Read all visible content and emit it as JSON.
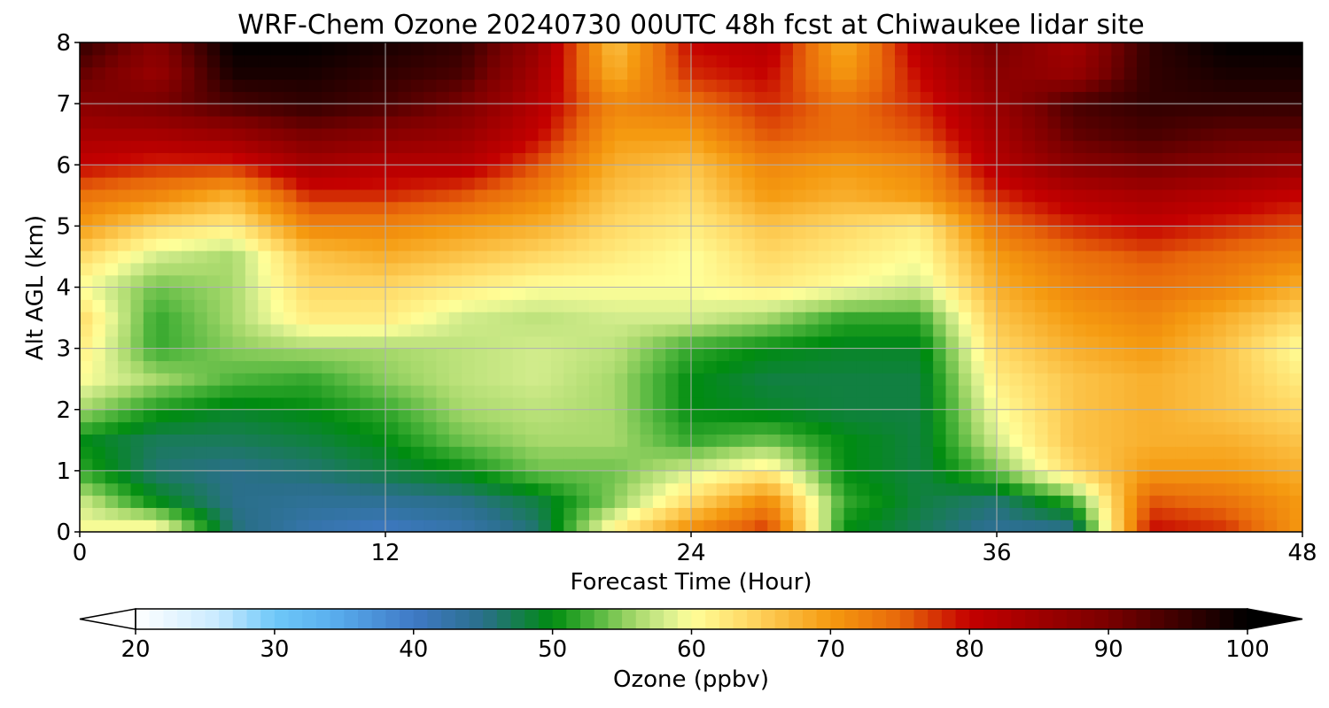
{
  "chart_data": {
    "type": "heatmap",
    "title": "WRF-Chem Ozone  20240730 00UTC 48h fcst at Chiwaukee lidar site",
    "xlabel": "Forecast Time (Hour)",
    "ylabel": "Alt AGL (km)",
    "xlim": [
      0,
      48
    ],
    "ylim": [
      0,
      8
    ],
    "xticks": [
      0,
      12,
      24,
      36,
      48
    ],
    "yticks": [
      0,
      1,
      2,
      3,
      4,
      5,
      6,
      7,
      8
    ],
    "grid": true,
    "x": [
      0,
      3,
      6,
      9,
      12,
      15,
      18,
      21,
      24,
      27,
      30,
      33,
      36,
      39,
      42,
      45,
      48
    ],
    "y": [
      0,
      0.5,
      1,
      1.5,
      2,
      2.5,
      3,
      3.5,
      4,
      4.5,
      5,
      5.5,
      6,
      6.5,
      7,
      7.5,
      8
    ],
    "z": [
      [
        60,
        62,
        46,
        42,
        40,
        42,
        46,
        62,
        72,
        78,
        50,
        47,
        44,
        44,
        80,
        78,
        70
      ],
      [
        58,
        50,
        45,
        44,
        44,
        45,
        48,
        55,
        64,
        72,
        52,
        48,
        46,
        52,
        76,
        74,
        70
      ],
      [
        52,
        46,
        45,
        46,
        48,
        50,
        54,
        54,
        58,
        62,
        50,
        48,
        54,
        64,
        70,
        70,
        68
      ],
      [
        50,
        47,
        47,
        48,
        50,
        54,
        56,
        56,
        52,
        54,
        50,
        48,
        58,
        66,
        68,
        68,
        66
      ],
      [
        56,
        51,
        49,
        50,
        52,
        56,
        57,
        56,
        50,
        49,
        48,
        48,
        60,
        66,
        68,
        66,
        64
      ],
      [
        60,
        56,
        53,
        52,
        55,
        57,
        58,
        56,
        50,
        48,
        48,
        48,
        62,
        66,
        68,
        66,
        62
      ],
      [
        62,
        52,
        55,
        56,
        56,
        57,
        58,
        57,
        52,
        50,
        49,
        49,
        64,
        68,
        70,
        66,
        60
      ],
      [
        64,
        52,
        56,
        62,
        62,
        58,
        57,
        58,
        58,
        56,
        52,
        52,
        66,
        70,
        72,
        68,
        64
      ],
      [
        60,
        54,
        56,
        64,
        64,
        62,
        60,
        60,
        60,
        62,
        60,
        58,
        68,
        72,
        74,
        72,
        68
      ],
      [
        64,
        58,
        56,
        66,
        68,
        66,
        64,
        62,
        60,
        64,
        62,
        60,
        70,
        74,
        76,
        74,
        72
      ],
      [
        70,
        64,
        62,
        72,
        72,
        70,
        68,
        64,
        62,
        66,
        64,
        62,
        74,
        78,
        80,
        78,
        76
      ],
      [
        74,
        72,
        68,
        78,
        78,
        76,
        72,
        66,
        64,
        70,
        68,
        70,
        78,
        82,
        84,
        82,
        80
      ],
      [
        80,
        78,
        78,
        84,
        82,
        82,
        76,
        68,
        66,
        72,
        70,
        72,
        82,
        88,
        90,
        88,
        86
      ],
      [
        84,
        84,
        86,
        90,
        88,
        86,
        80,
        70,
        70,
        76,
        74,
        76,
        84,
        92,
        94,
        92,
        92
      ],
      [
        88,
        90,
        94,
        96,
        94,
        90,
        82,
        72,
        74,
        78,
        74,
        78,
        86,
        94,
        96,
        96,
        96
      ],
      [
        92,
        86,
        98,
        98,
        96,
        94,
        84,
        68,
        78,
        80,
        70,
        80,
        88,
        86,
        96,
        98,
        98
      ],
      [
        96,
        88,
        100,
        100,
        98,
        96,
        86,
        66,
        80,
        82,
        68,
        82,
        90,
        84,
        96,
        100,
        100
      ]
    ],
    "colorbar": {
      "label": "Ozone  (ppbv)",
      "min": 20,
      "max": 100,
      "ticks": [
        20,
        30,
        40,
        50,
        60,
        70,
        80,
        90,
        100
      ],
      "extend": "both",
      "orientation": "horizontal",
      "colormap": [
        [
          20,
          "#ffffff"
        ],
        [
          26,
          "#c8eaff"
        ],
        [
          30,
          "#6fc8f8"
        ],
        [
          34,
          "#5ab0ef"
        ],
        [
          40,
          "#3f79c6"
        ],
        [
          45,
          "#2a6f8a"
        ],
        [
          50,
          "#008c10"
        ],
        [
          53,
          "#4fb53c"
        ],
        [
          56,
          "#a8d96c"
        ],
        [
          58,
          "#d2ec8c"
        ],
        [
          60,
          "#ffff99"
        ],
        [
          64,
          "#ffd966"
        ],
        [
          70,
          "#f59a10"
        ],
        [
          75,
          "#e8680a"
        ],
        [
          80,
          "#c40000"
        ],
        [
          90,
          "#7a0000"
        ],
        [
          100,
          "#000000"
        ]
      ]
    }
  }
}
